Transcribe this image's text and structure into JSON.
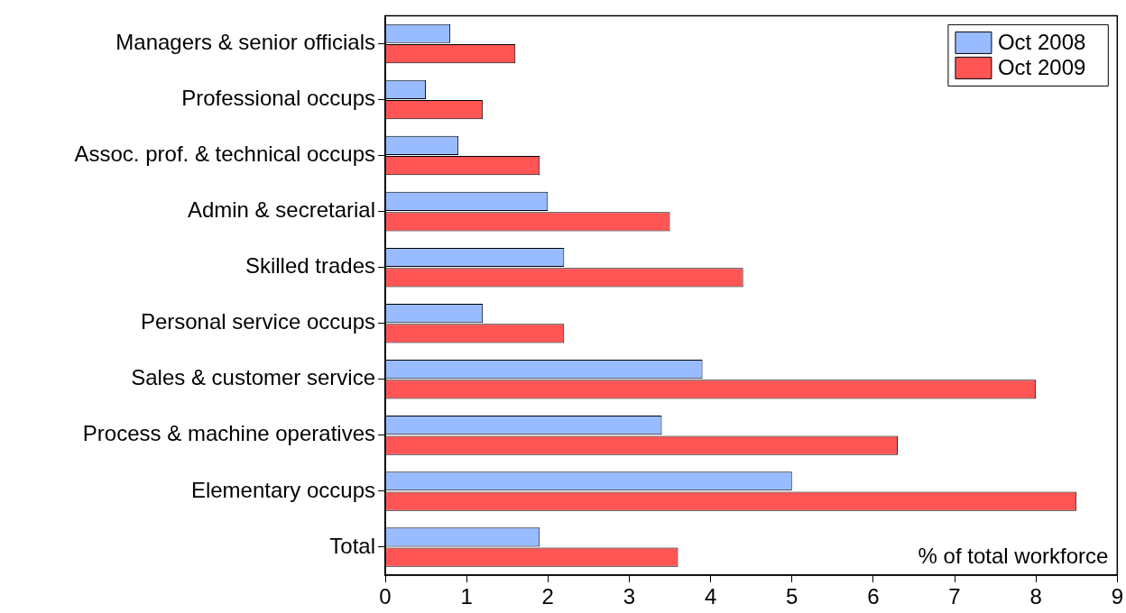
{
  "chart_data": {
    "type": "bar",
    "orientation": "horizontal",
    "categories": [
      "Managers & senior officials",
      "Professional occups",
      "Assoc. prof. & technical occups",
      "Admin & secretarial",
      "Skilled trades",
      "Personal service occups",
      "Sales & customer service",
      "Process & machine operatives",
      "Elementary occups",
      "Total"
    ],
    "series": [
      {
        "name": "Oct 2008",
        "color": "#99bbff",
        "values": [
          0.8,
          0.5,
          0.9,
          2.0,
          2.2,
          1.2,
          3.9,
          3.4,
          5.0,
          1.9
        ]
      },
      {
        "name": "Oct 2009",
        "color": "#ff5555",
        "values": [
          1.6,
          1.2,
          1.9,
          3.5,
          4.4,
          2.2,
          8.0,
          6.3,
          8.5,
          3.6
        ]
      }
    ],
    "xlim": [
      0,
      9
    ],
    "xticks": [
      0,
      1,
      2,
      3,
      4,
      5,
      6,
      7,
      8,
      9
    ],
    "annotations": [
      "% of total workforce"
    ],
    "legend": "top right",
    "grid": false
  }
}
